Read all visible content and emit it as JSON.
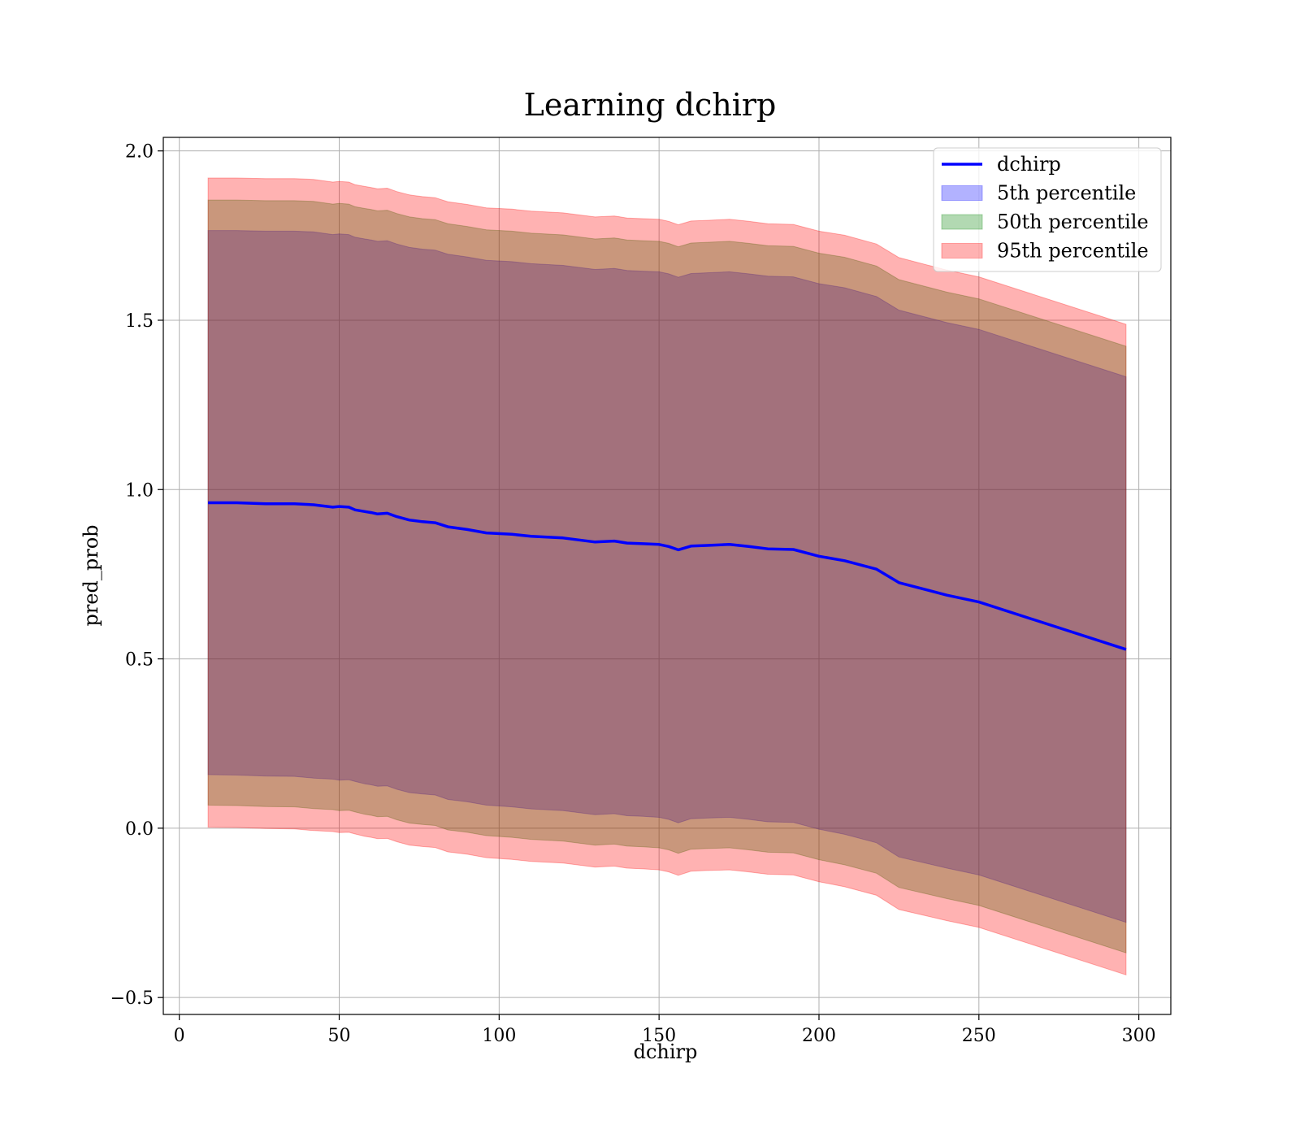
{
  "chart_data": {
    "type": "area",
    "title": "Learning dchirp",
    "xlabel": "dchirp",
    "ylabel": "pred_prob",
    "xlim": [
      -5,
      310
    ],
    "ylim": [
      -0.55,
      2.04
    ],
    "xticks": [
      0,
      50,
      100,
      150,
      200,
      250,
      300
    ],
    "xtick_labels": [
      "0",
      "50",
      "100",
      "150",
      "200",
      "250",
      "300"
    ],
    "yticks": [
      -0.5,
      0.0,
      0.5,
      1.0,
      1.5,
      2.0
    ],
    "ytick_labels": [
      "−0.5",
      "0.0",
      "0.5",
      "1.0",
      "1.5",
      "2.0"
    ],
    "grid": true,
    "legend_position": "top-right",
    "x": [
      9,
      18,
      27,
      36,
      42,
      48,
      50,
      53,
      55,
      58,
      60,
      62,
      65,
      68,
      72,
      76,
      80,
      84,
      90,
      96,
      104,
      110,
      120,
      130,
      136,
      140,
      145,
      150,
      153,
      156,
      160,
      165,
      172,
      178,
      184,
      192,
      200,
      208,
      218,
      225,
      240,
      250,
      296
    ],
    "series": [
      {
        "name": "dchirp",
        "kind": "line",
        "color": "#0000ff",
        "values": [
          0.961,
          0.961,
          0.958,
          0.958,
          0.955,
          0.948,
          0.95,
          0.948,
          0.94,
          0.935,
          0.932,
          0.928,
          0.93,
          0.92,
          0.91,
          0.905,
          0.902,
          0.89,
          0.882,
          0.872,
          0.868,
          0.862,
          0.857,
          0.845,
          0.848,
          0.842,
          0.84,
          0.838,
          0.832,
          0.822,
          0.833,
          0.835,
          0.838,
          0.832,
          0.825,
          0.823,
          0.803,
          0.79,
          0.765,
          0.725,
          0.688,
          0.668,
          0.528
        ]
      },
      {
        "name": "5th percentile",
        "kind": "band",
        "color": "#0000ff",
        "lower": [
          0.158,
          0.157,
          0.154,
          0.153,
          0.148,
          0.145,
          0.142,
          0.143,
          0.138,
          0.131,
          0.128,
          0.124,
          0.125,
          0.115,
          0.105,
          0.101,
          0.098,
          0.085,
          0.078,
          0.068,
          0.063,
          0.057,
          0.052,
          0.04,
          0.043,
          0.037,
          0.035,
          0.032,
          0.026,
          0.016,
          0.028,
          0.03,
          0.032,
          0.026,
          0.019,
          0.017,
          -0.003,
          -0.018,
          -0.043,
          -0.085,
          -0.118,
          -0.138,
          -0.278
        ],
        "upper": [
          1.765,
          1.765,
          1.763,
          1.763,
          1.761,
          1.753,
          1.755,
          1.753,
          1.745,
          1.74,
          1.737,
          1.733,
          1.735,
          1.725,
          1.715,
          1.71,
          1.707,
          1.695,
          1.687,
          1.677,
          1.673,
          1.667,
          1.662,
          1.65,
          1.653,
          1.647,
          1.645,
          1.643,
          1.637,
          1.627,
          1.638,
          1.64,
          1.643,
          1.637,
          1.63,
          1.628,
          1.608,
          1.596,
          1.57,
          1.53,
          1.493,
          1.473,
          1.333
        ]
      },
      {
        "name": "50th percentile",
        "kind": "band",
        "color": "#008000",
        "lower": [
          0.068,
          0.067,
          0.064,
          0.063,
          0.058,
          0.055,
          0.052,
          0.053,
          0.048,
          0.041,
          0.038,
          0.034,
          0.035,
          0.025,
          0.015,
          0.011,
          0.008,
          -0.005,
          -0.012,
          -0.022,
          -0.027,
          -0.033,
          -0.038,
          -0.05,
          -0.047,
          -0.053,
          -0.055,
          -0.058,
          -0.064,
          -0.074,
          -0.062,
          -0.06,
          -0.058,
          -0.064,
          -0.071,
          -0.073,
          -0.093,
          -0.108,
          -0.133,
          -0.175,
          -0.208,
          -0.228,
          -0.368
        ],
        "upper": [
          1.855,
          1.855,
          1.853,
          1.853,
          1.851,
          1.843,
          1.845,
          1.843,
          1.835,
          1.83,
          1.827,
          1.823,
          1.825,
          1.815,
          1.805,
          1.8,
          1.797,
          1.785,
          1.777,
          1.767,
          1.763,
          1.757,
          1.752,
          1.74,
          1.743,
          1.737,
          1.735,
          1.733,
          1.727,
          1.717,
          1.728,
          1.73,
          1.733,
          1.727,
          1.72,
          1.718,
          1.698,
          1.686,
          1.66,
          1.62,
          1.583,
          1.563,
          1.423
        ]
      },
      {
        "name": "95th percentile",
        "kind": "band",
        "color": "#ff0000",
        "lower": [
          0.003,
          0.002,
          -0.001,
          -0.002,
          -0.007,
          -0.01,
          -0.013,
          -0.012,
          -0.017,
          -0.024,
          -0.027,
          -0.031,
          -0.03,
          -0.04,
          -0.05,
          -0.054,
          -0.057,
          -0.07,
          -0.077,
          -0.087,
          -0.092,
          -0.098,
          -0.103,
          -0.115,
          -0.112,
          -0.118,
          -0.12,
          -0.123,
          -0.129,
          -0.139,
          -0.127,
          -0.125,
          -0.123,
          -0.129,
          -0.136,
          -0.138,
          -0.158,
          -0.173,
          -0.198,
          -0.24,
          -0.273,
          -0.293,
          -0.433
        ],
        "upper": [
          1.92,
          1.92,
          1.918,
          1.918,
          1.916,
          1.908,
          1.91,
          1.908,
          1.9,
          1.895,
          1.892,
          1.888,
          1.89,
          1.88,
          1.87,
          1.865,
          1.862,
          1.85,
          1.842,
          1.832,
          1.828,
          1.822,
          1.817,
          1.805,
          1.808,
          1.802,
          1.8,
          1.798,
          1.792,
          1.782,
          1.793,
          1.795,
          1.798,
          1.792,
          1.785,
          1.783,
          1.763,
          1.751,
          1.725,
          1.685,
          1.648,
          1.628,
          1.488
        ]
      }
    ]
  }
}
